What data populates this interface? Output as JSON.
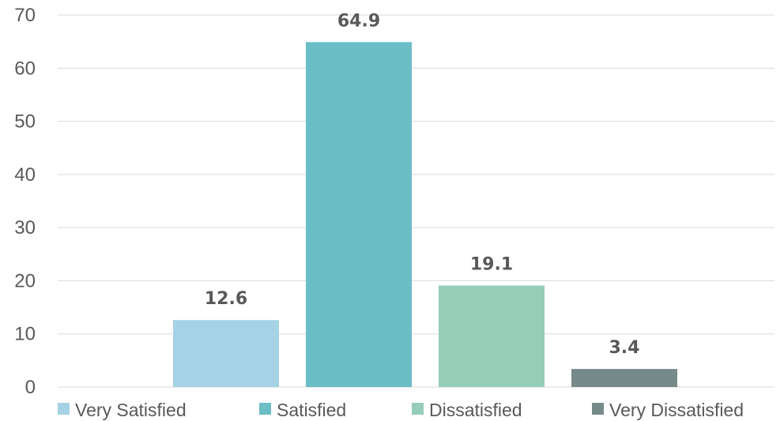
{
  "chart_data": {
    "type": "bar",
    "title": "",
    "xlabel": "",
    "ylabel": "",
    "ylim": [
      0,
      70
    ],
    "yticks": [
      0,
      10,
      20,
      30,
      40,
      50,
      60,
      70
    ],
    "grid": true,
    "legend_position": "bottom",
    "series": [
      {
        "name": "Very Satisfied",
        "value": 12.6,
        "label": "12.6",
        "color": "#a5d2e4"
      },
      {
        "name": "Satisfied",
        "value": 64.9,
        "label": "64.9",
        "color": "#6bbdc6"
      },
      {
        "name": "Dissatisfied",
        "value": 19.1,
        "label": "19.1",
        "color": "#96cdb8"
      },
      {
        "name": "Very Dissatisfied",
        "value": 3.4,
        "label": "3.4",
        "color": "#778a8a"
      }
    ]
  }
}
